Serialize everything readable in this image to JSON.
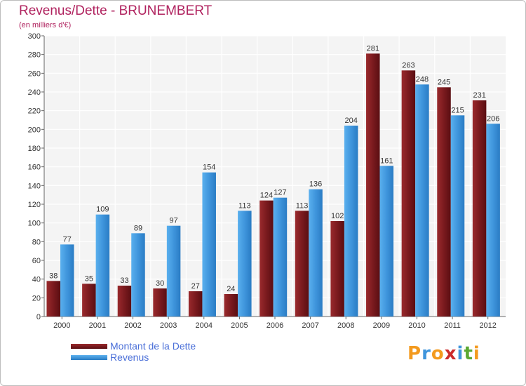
{
  "chart_data": {
    "type": "bar",
    "title": "Revenus/Dette - BRUNEMBERT",
    "subtitle": "(en milliers d'€)",
    "categories": [
      "2000",
      "2001",
      "2002",
      "2003",
      "2004",
      "2005",
      "2006",
      "2007",
      "2008",
      "2009",
      "2010",
      "2011",
      "2012"
    ],
    "series": [
      {
        "name": "Montant de la Dette",
        "color": "#7a1a1e",
        "values": [
          38,
          35,
          33,
          30,
          27,
          24,
          124,
          113,
          102,
          281,
          263,
          245,
          231
        ]
      },
      {
        "name": "Revenus",
        "color": "#3f95dc",
        "values": [
          77,
          109,
          89,
          97,
          154,
          113,
          127,
          136,
          204,
          161,
          248,
          215,
          206
        ]
      }
    ],
    "ylim": [
      0,
      300
    ],
    "yticks": [
      0,
      20,
      40,
      60,
      80,
      100,
      120,
      140,
      160,
      180,
      200,
      220,
      240,
      260,
      280,
      300
    ],
    "grid": true,
    "legend": "bottom-left"
  },
  "legend": {
    "items": [
      {
        "label": "Montant de la Dette",
        "color": "#7a1a1e"
      },
      {
        "label": "Revenus",
        "color": "#3f95dc"
      }
    ]
  },
  "logo": {
    "letters": [
      {
        "ch": "P",
        "color": "#f39a1e"
      },
      {
        "ch": "r",
        "color": "#3f95dc"
      },
      {
        "ch": "o",
        "color": "#f39a1e"
      },
      {
        "ch": "x",
        "color": "#cc2b2b"
      },
      {
        "ch": "i",
        "color": "#3f95dc"
      },
      {
        "ch": "t",
        "color": "#5aa832"
      },
      {
        "ch": "i",
        "color": "#f39a1e"
      }
    ]
  }
}
